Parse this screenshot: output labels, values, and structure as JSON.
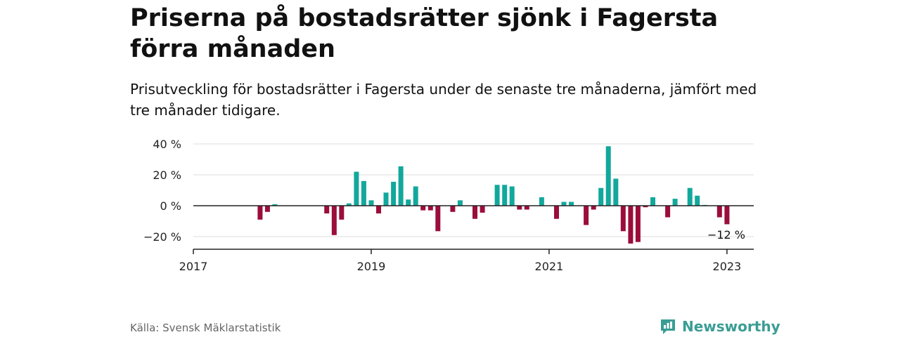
{
  "title": "Priserna på bostadsrätter sjönk i Fagersta förra månaden",
  "subtitle": "Prisutveckling för bostadsrätter i Fagersta under de senaste tre månaderna, jämfört med tre månader tidigare.",
  "source": "Källa: Svensk Mäklarstatistik",
  "brand": {
    "name": "Newsworthy",
    "icon": "newsworthy-logo-icon"
  },
  "colors": {
    "positive": "#12a89c",
    "negative": "#9b0d3a",
    "grid": "#dddddd",
    "axis": "#222222"
  },
  "chart_data": {
    "type": "bar",
    "title": "Priserna på bostadsrätter sjönk i Fagersta förra månaden",
    "xlabel": "",
    "ylabel": "",
    "ylim": [
      -28,
      42
    ],
    "xlim": [
      "2017-01",
      "2023-04"
    ],
    "y_ticks": [
      {
        "value": 40,
        "label": "40 %"
      },
      {
        "value": 20,
        "label": "20 %"
      },
      {
        "value": 0,
        "label": "0 %"
      },
      {
        "value": -20,
        "label": "−20 %"
      }
    ],
    "x_ticks": [
      {
        "value": "2017-01",
        "label": "2017"
      },
      {
        "value": "2019-01",
        "label": "2019"
      },
      {
        "value": "2021-01",
        "label": "2021"
      },
      {
        "value": "2023-01",
        "label": "2023"
      }
    ],
    "grid": true,
    "annotations": [
      {
        "x": "2023-01",
        "y": -12,
        "text": "−12 %"
      }
    ],
    "series": [
      {
        "x": [
          "2017-10",
          "2017-11",
          "2017-12",
          "2018-07",
          "2018-08",
          "2018-09",
          "2018-10",
          "2018-11",
          "2018-12",
          "2019-01",
          "2019-02",
          "2019-03",
          "2019-04",
          "2019-05",
          "2019-06",
          "2019-07",
          "2019-08",
          "2019-09",
          "2019-10",
          "2019-12",
          "2020-01",
          "2020-03",
          "2020-04",
          "2020-06",
          "2020-07",
          "2020-08",
          "2020-09",
          "2020-10",
          "2020-12",
          "2021-02",
          "2021-03",
          "2021-04",
          "2021-06",
          "2021-07",
          "2021-08",
          "2021-09",
          "2021-10",
          "2021-11",
          "2021-12",
          "2022-01",
          "2022-02",
          "2022-03",
          "2022-05",
          "2022-06",
          "2022-08",
          "2022-09",
          "2022-10",
          "2022-12",
          "2023-01"
        ],
        "values": [
          -9,
          -4,
          1,
          -5,
          -19,
          -9,
          1.5,
          22,
          16,
          3.5,
          -5,
          8.5,
          15.5,
          25.5,
          4,
          12.5,
          -3,
          -3,
          -16.5,
          -4,
          3.5,
          -8.5,
          -4.5,
          13.5,
          13.5,
          12.5,
          -2.5,
          -2.5,
          5.5,
          -8.5,
          2.5,
          2.5,
          -12.5,
          -2.5,
          11.5,
          38.5,
          17.5,
          -16.5,
          -24.5,
          -23.5,
          -1,
          5.5,
          -7.5,
          4.5,
          11.5,
          6.5,
          0.5,
          -7.5,
          -12
        ]
      }
    ]
  }
}
